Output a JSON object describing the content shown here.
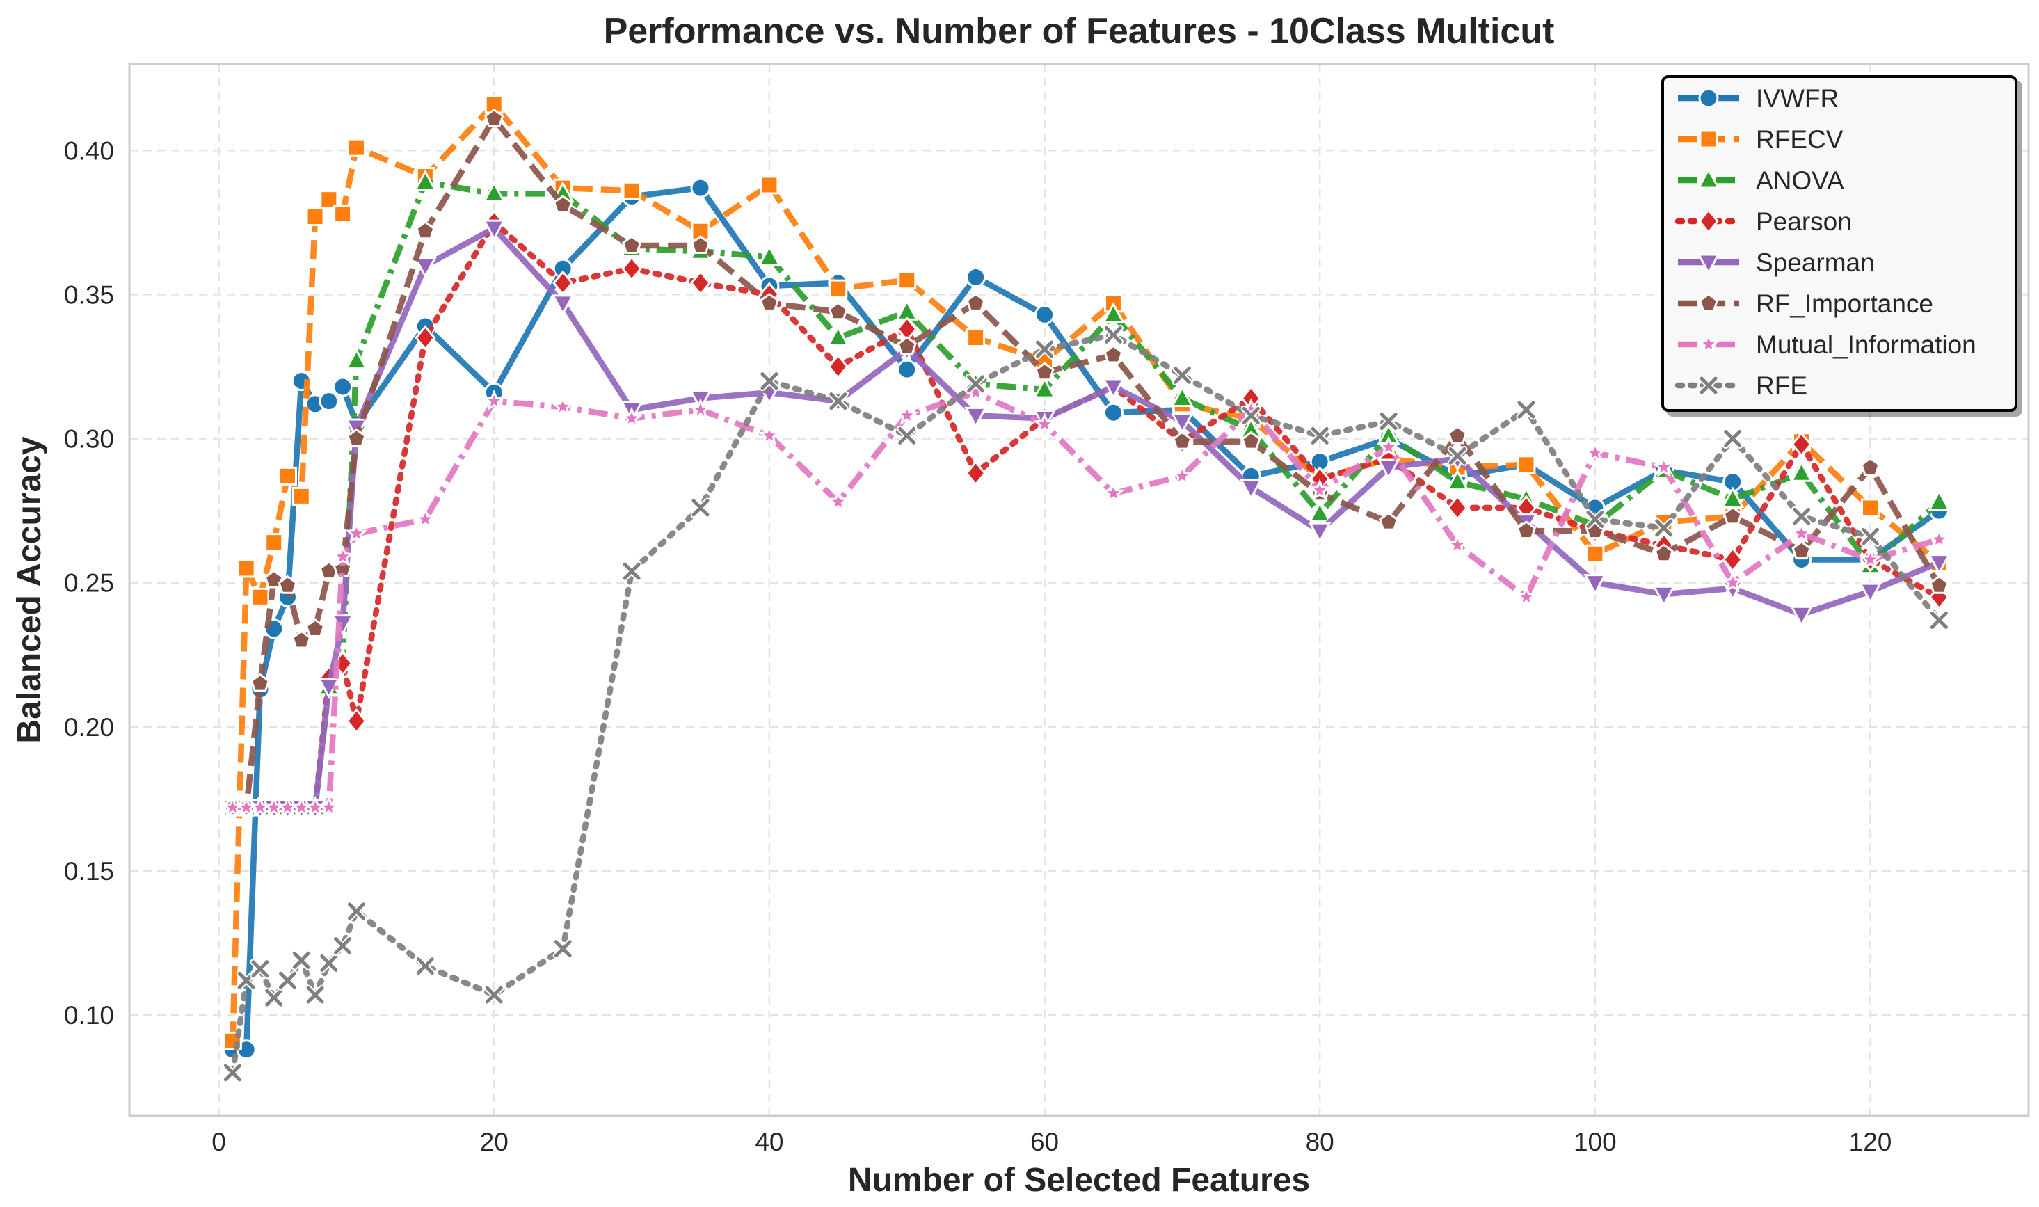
{
  "chart_data": {
    "type": "line",
    "title": "Performance vs. Number of Features - 10Class Multicut",
    "xlabel": "Number of Selected Features",
    "ylabel": "Balanced Accuracy",
    "xlim": [
      -6.5,
      131.5
    ],
    "ylim": [
      0.065,
      0.43
    ],
    "xticks": [
      0,
      20,
      40,
      60,
      80,
      100,
      120
    ],
    "yticks": [
      0.1,
      0.15,
      0.2,
      0.25,
      0.3,
      0.35,
      0.4
    ],
    "grid": true,
    "legend_position": "top-right",
    "x": [
      1,
      2,
      3,
      4,
      5,
      6,
      7,
      8,
      9,
      10,
      15,
      20,
      25,
      30,
      35,
      40,
      45,
      50,
      55,
      60,
      65,
      70,
      75,
      80,
      85,
      90,
      95,
      100,
      105,
      110,
      115,
      120,
      125
    ],
    "series": [
      {
        "name": "IVWFR",
        "color": "#1f77b4",
        "dash": "solid",
        "marker": "circle",
        "values": [
          0.088,
          0.088,
          0.213,
          0.234,
          0.245,
          0.32,
          0.312,
          0.313,
          0.318,
          0.305,
          0.339,
          0.316,
          0.359,
          0.384,
          0.387,
          0.353,
          0.354,
          0.324,
          0.356,
          0.343,
          0.309,
          0.31,
          0.287,
          0.292,
          0.3,
          0.287,
          0.291,
          0.276,
          0.289,
          0.285,
          0.258,
          0.258,
          0.275
        ]
      },
      {
        "name": "RFECV",
        "color": "#ff7f0e",
        "dash": "dashed",
        "marker": "square",
        "values": [
          0.091,
          0.255,
          0.245,
          0.264,
          0.287,
          0.28,
          0.377,
          0.383,
          0.378,
          0.401,
          0.391,
          0.416,
          0.387,
          0.386,
          0.372,
          0.388,
          0.352,
          0.355,
          0.335,
          0.327,
          0.347,
          0.312,
          0.307,
          0.286,
          0.293,
          0.29,
          0.291,
          0.26,
          0.271,
          0.273,
          0.299,
          0.276,
          0.257
        ]
      },
      {
        "name": "ANOVA",
        "color": "#2ca02c",
        "dash": "dashdot",
        "marker": "triangle-up",
        "values": [
          0.172,
          0.172,
          0.172,
          0.172,
          0.172,
          0.172,
          0.172,
          0.214,
          0.223,
          0.327,
          0.389,
          0.385,
          0.385,
          0.366,
          0.365,
          0.363,
          0.335,
          0.344,
          0.319,
          0.317,
          0.343,
          0.314,
          0.303,
          0.274,
          0.301,
          0.285,
          0.279,
          0.27,
          0.289,
          0.279,
          0.288,
          0.256,
          0.278
        ]
      },
      {
        "name": "Pearson",
        "color": "#d62728",
        "dash": "dotted",
        "marker": "diamond",
        "values": [
          0.172,
          0.172,
          0.172,
          0.172,
          0.172,
          0.172,
          0.172,
          0.217,
          0.222,
          0.202,
          0.335,
          0.375,
          0.354,
          0.359,
          0.354,
          0.35,
          0.325,
          0.338,
          0.288,
          0.307,
          0.318,
          0.299,
          0.314,
          0.286,
          0.293,
          0.276,
          0.276,
          0.268,
          0.263,
          0.258,
          0.298,
          0.258,
          0.245
        ]
      },
      {
        "name": "Spearman",
        "color": "#9467bd",
        "dash": "solid",
        "marker": "triangle-down",
        "values": [
          0.172,
          0.172,
          0.172,
          0.172,
          0.172,
          0.172,
          0.172,
          0.214,
          0.236,
          0.304,
          0.36,
          0.373,
          0.347,
          0.31,
          0.314,
          0.316,
          0.313,
          0.331,
          0.308,
          0.307,
          0.318,
          0.306,
          0.283,
          0.268,
          0.29,
          0.293,
          0.271,
          0.25,
          0.246,
          0.248,
          0.239,
          0.247,
          0.257
        ]
      },
      {
        "name": "RF_Importance",
        "color": "#8c564b",
        "dash": "dashed",
        "marker": "pentagon",
        "values": [
          0.172,
          0.172,
          0.215,
          0.251,
          0.249,
          0.23,
          0.234,
          0.254,
          0.255,
          0.3,
          0.372,
          0.411,
          0.381,
          0.367,
          0.367,
          0.347,
          0.344,
          0.332,
          0.347,
          0.323,
          0.329,
          0.299,
          0.299,
          0.281,
          0.271,
          0.301,
          0.268,
          0.268,
          0.26,
          0.273,
          0.261,
          0.29,
          0.249
        ]
      },
      {
        "name": "Mutual_Information",
        "color": "#e377c2",
        "dash": "dashdot",
        "marker": "star",
        "values": [
          0.172,
          0.172,
          0.172,
          0.172,
          0.172,
          0.172,
          0.172,
          0.172,
          0.259,
          0.267,
          0.272,
          0.313,
          0.311,
          0.307,
          0.31,
          0.301,
          0.278,
          0.308,
          0.316,
          0.305,
          0.281,
          0.287,
          0.31,
          0.282,
          0.297,
          0.263,
          0.245,
          0.295,
          0.29,
          0.25,
          0.267,
          0.258,
          0.265
        ]
      },
      {
        "name": "RFE",
        "color": "#7f7f7f",
        "dash": "dotted",
        "marker": "x",
        "values": [
          0.08,
          0.112,
          0.116,
          0.106,
          0.112,
          0.119,
          0.107,
          0.118,
          0.124,
          0.136,
          0.117,
          0.107,
          0.123,
          0.254,
          0.276,
          0.32,
          0.313,
          0.301,
          0.319,
          0.331,
          0.336,
          0.322,
          0.308,
          0.301,
          0.306,
          0.294,
          0.31,
          0.272,
          0.269,
          0.3,
          0.273,
          0.266,
          0.237
        ]
      }
    ]
  }
}
